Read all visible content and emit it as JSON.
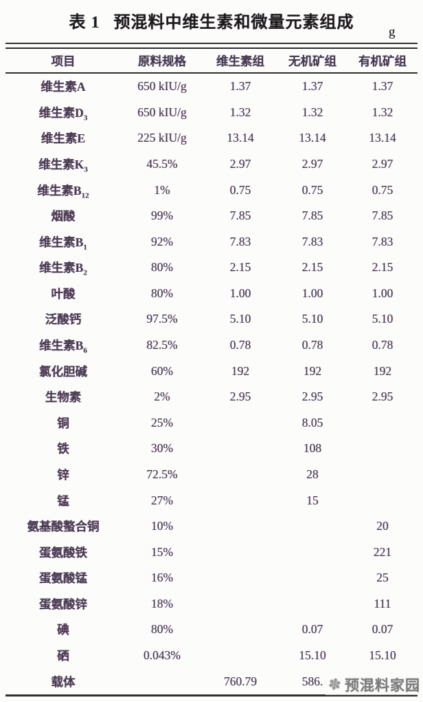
{
  "page": {
    "background": "#fcfcfb",
    "text_color": "#483a52",
    "title_color": "#1b1b1b",
    "rule_color": "#2e2e2e",
    "watermark_color": "#7d7d7d"
  },
  "table": {
    "title_label": "表 1",
    "title": "预混料中维生素和微量元素组成",
    "unit": "g",
    "columns": [
      "项目",
      "原料规格",
      "维生素组",
      "无机矿组",
      "有机矿组"
    ],
    "rows": [
      {
        "item": "维生素A",
        "sub": "",
        "spec": "650 kIU/g",
        "vit": "1.37",
        "inorg": "1.37",
        "org": "1.37"
      },
      {
        "item": "维生素D",
        "sub": "3",
        "spec": "650 kIU/g",
        "vit": "1.32",
        "inorg": "1.32",
        "org": "1.32"
      },
      {
        "item": "维生素E",
        "sub": "",
        "spec": "225 kIU/g",
        "vit": "13.14",
        "inorg": "13.14",
        "org": "13.14"
      },
      {
        "item": "维生素K",
        "sub": "3",
        "spec": "45.5%",
        "vit": "2.97",
        "inorg": "2.97",
        "org": "2.97"
      },
      {
        "item": "维生素B",
        "sub": "12",
        "spec": "1%",
        "vit": "0.75",
        "inorg": "0.75",
        "org": "0.75"
      },
      {
        "item": "烟酸",
        "sub": "",
        "spec": "99%",
        "vit": "7.85",
        "inorg": "7.85",
        "org": "7.85"
      },
      {
        "item": "维生素B",
        "sub": "1",
        "spec": "92%",
        "vit": "7.83",
        "inorg": "7.83",
        "org": "7.83"
      },
      {
        "item": "维生素B",
        "sub": "2",
        "spec": "80%",
        "vit": "2.15",
        "inorg": "2.15",
        "org": "2.15"
      },
      {
        "item": "叶酸",
        "sub": "",
        "spec": "80%",
        "vit": "1.00",
        "inorg": "1.00",
        "org": "1.00"
      },
      {
        "item": "泛酸钙",
        "sub": "",
        "spec": "97.5%",
        "vit": "5.10",
        "inorg": "5.10",
        "org": "5.10"
      },
      {
        "item": "维生素B",
        "sub": "6",
        "spec": "82.5%",
        "vit": "0.78",
        "inorg": "0.78",
        "org": "0.78"
      },
      {
        "item": "氯化胆碱",
        "sub": "",
        "spec": "60%",
        "vit": "192",
        "inorg": "192",
        "org": "192"
      },
      {
        "item": "生物素",
        "sub": "",
        "spec": "2%",
        "vit": "2.95",
        "inorg": "2.95",
        "org": "2.95"
      },
      {
        "item": "铜",
        "sub": "",
        "spec": "25%",
        "vit": "",
        "inorg": "8.05",
        "org": ""
      },
      {
        "item": "铁",
        "sub": "",
        "spec": "30%",
        "vit": "",
        "inorg": "108",
        "org": ""
      },
      {
        "item": "锌",
        "sub": "",
        "spec": "72.5%",
        "vit": "",
        "inorg": "28",
        "org": ""
      },
      {
        "item": "锰",
        "sub": "",
        "spec": "27%",
        "vit": "",
        "inorg": "15",
        "org": ""
      },
      {
        "item": "氨基酸螯合铜",
        "sub": "",
        "spec": "10%",
        "vit": "",
        "inorg": "",
        "org": "20"
      },
      {
        "item": "蛋氨酸铁",
        "sub": "",
        "spec": "15%",
        "vit": "",
        "inorg": "",
        "org": "221"
      },
      {
        "item": "蛋氨酸锰",
        "sub": "",
        "spec": "16%",
        "vit": "",
        "inorg": "",
        "org": "25"
      },
      {
        "item": "蛋氨酸锌",
        "sub": "",
        "spec": "18%",
        "vit": "",
        "inorg": "",
        "org": "111"
      },
      {
        "item": "碘",
        "sub": "",
        "spec": "80%",
        "vit": "",
        "inorg": "0.07",
        "org": "0.07"
      },
      {
        "item": "硒",
        "sub": "",
        "spec": "0.043%",
        "vit": "",
        "inorg": "15.10",
        "org": "15.10"
      },
      {
        "item": "载体",
        "sub": "",
        "spec": "",
        "vit": "760.79",
        "inorg": "586.",
        "org": ""
      }
    ]
  },
  "watermark": {
    "icon": "snowflake-icon",
    "icon_glyph": "✽",
    "text": "预混料家园"
  }
}
